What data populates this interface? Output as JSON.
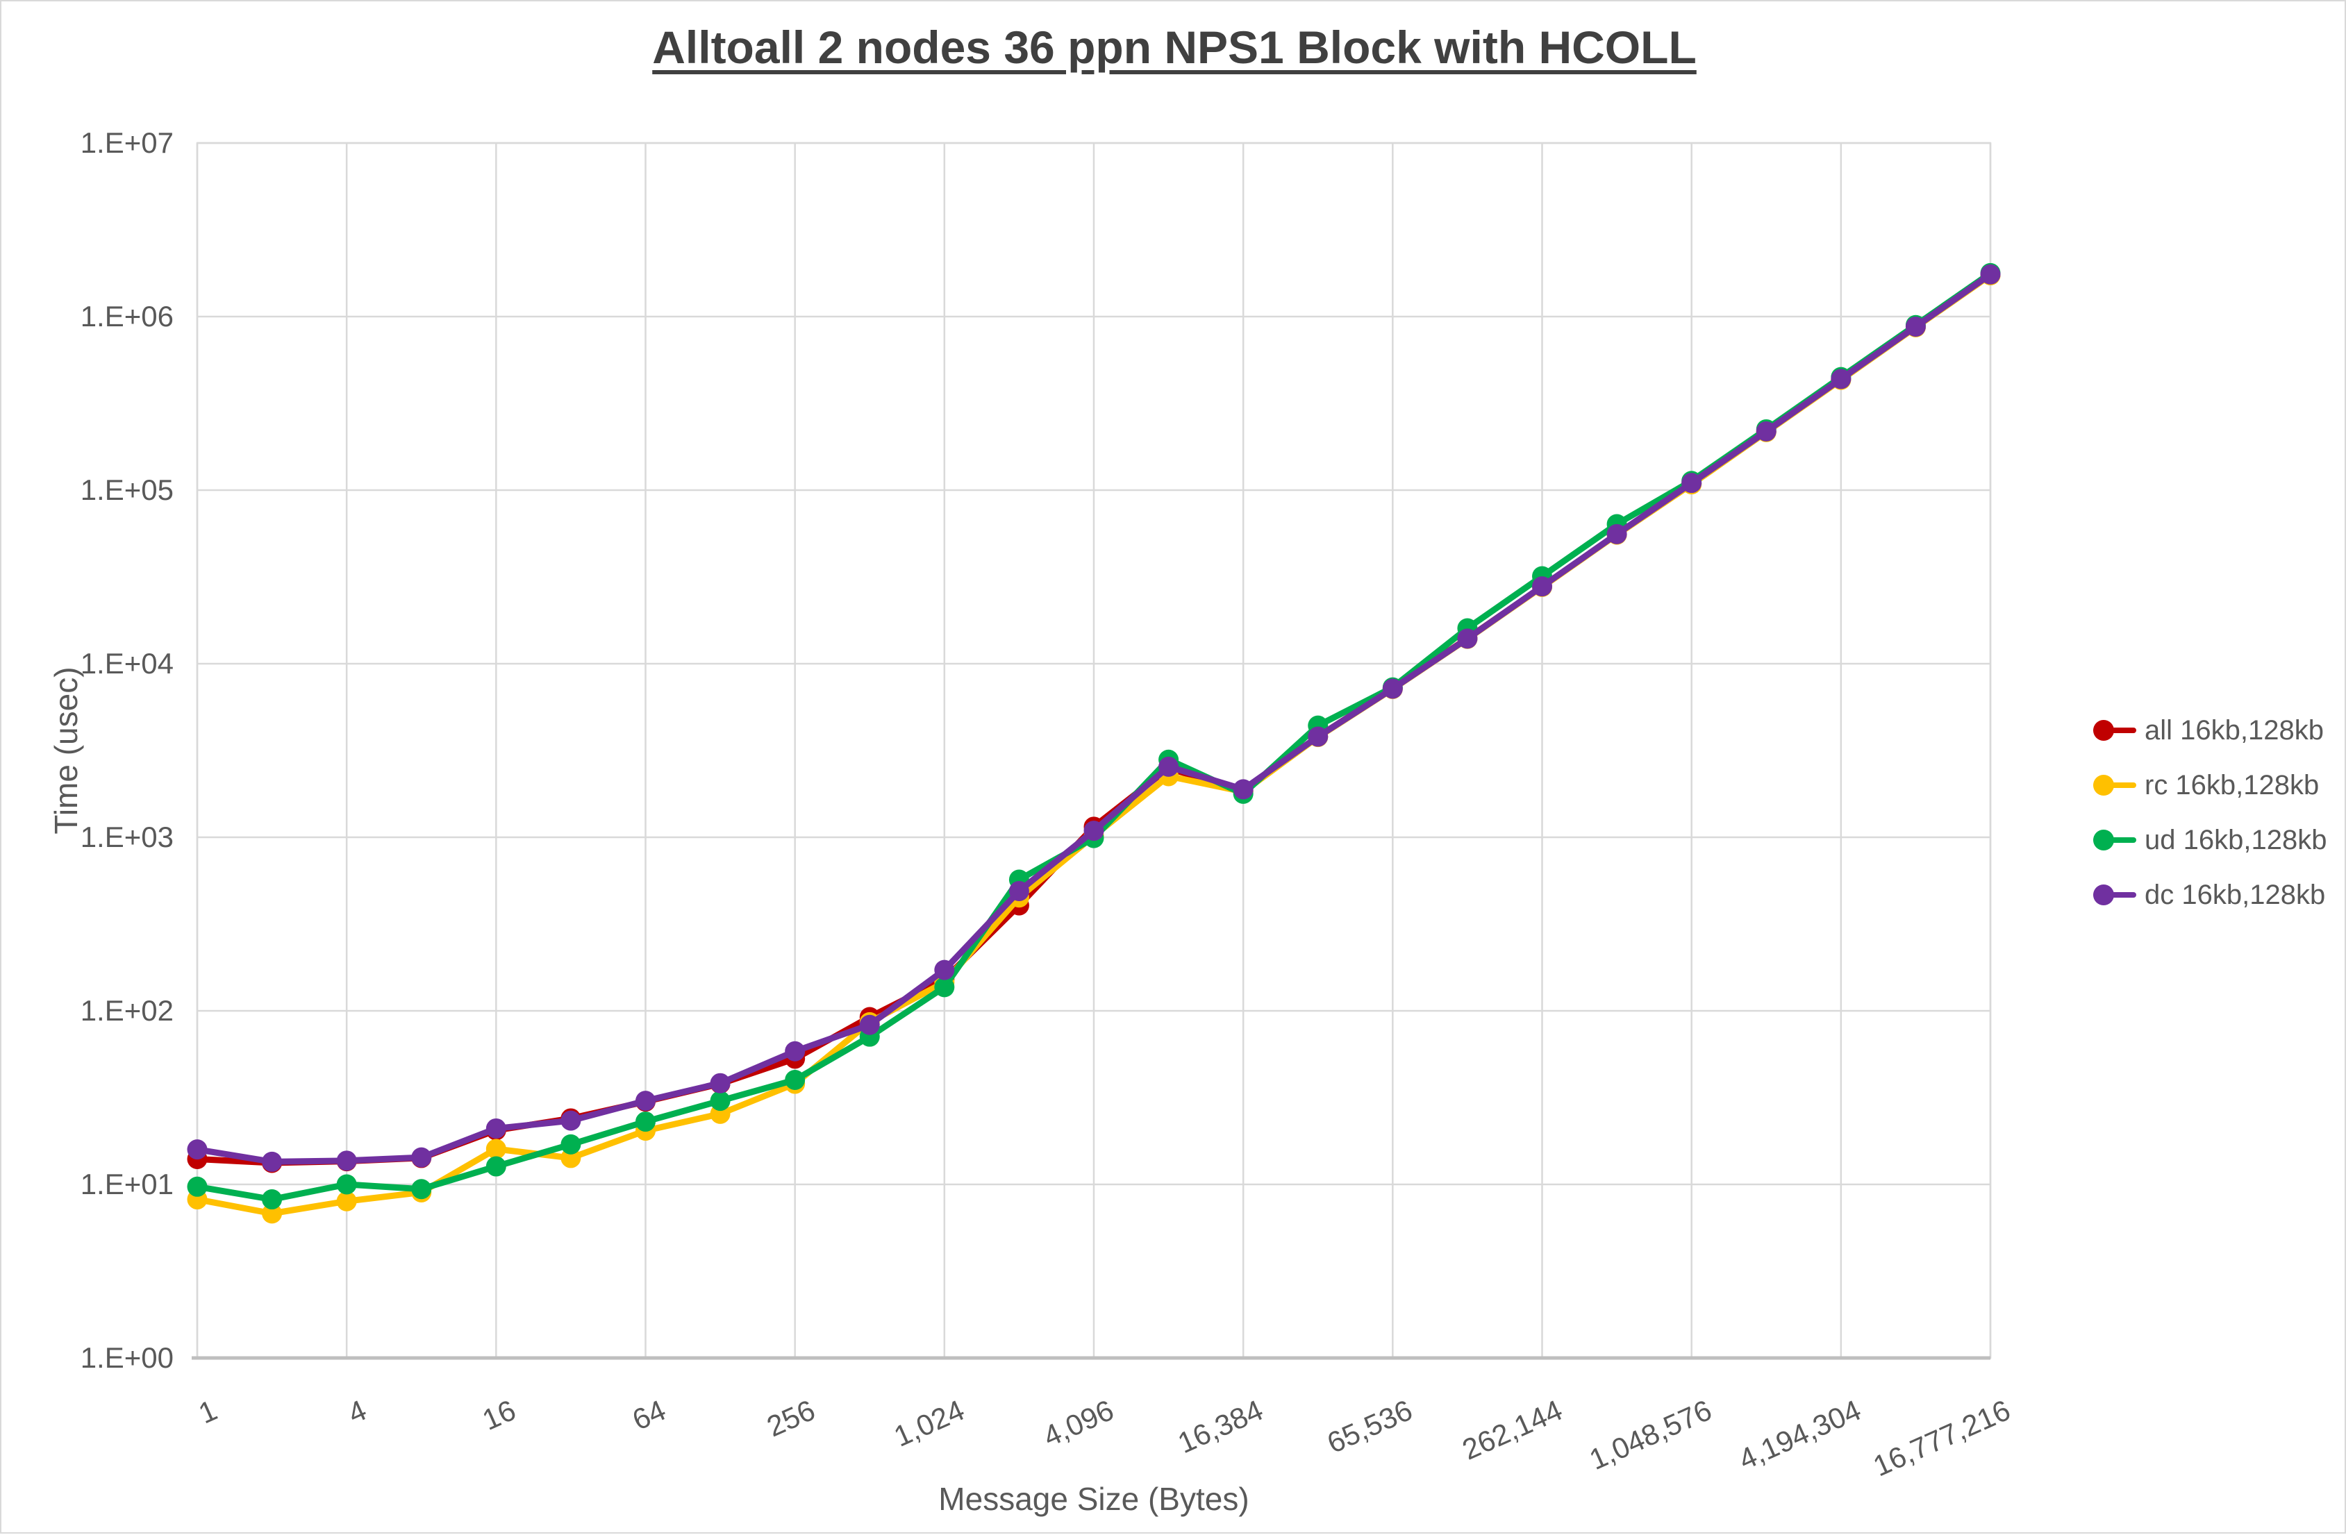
{
  "title": "Alltoall 2 nodes 36 ppn NPS1 Block with HCOLL",
  "axes": {
    "y_title": "Time (usec)",
    "x_title": "Message Size (Bytes)"
  },
  "colors": {
    "series_all": "#c00000",
    "series_rc": "#ffc000",
    "series_ud": "#00b050",
    "series_dc": "#7030a0",
    "gridline": "#d9d9d9",
    "axis_line": "#bfbfbf",
    "tick_text": "#595959",
    "title_text": "#404040"
  },
  "chart_data": {
    "type": "line",
    "title": "Alltoall 2 nodes 36 ppn NPS1 Block with HCOLL",
    "xlabel": "Message Size (Bytes)",
    "ylabel": "Time (usec)",
    "x_scale": "log2",
    "y_scale": "log10",
    "grid": true,
    "legend_position": "right",
    "xlim": [
      1,
      16777216
    ],
    "ylim": [
      1,
      10000000
    ],
    "y_ticks": [
      "1.E+00",
      "1.E+01",
      "1.E+02",
      "1.E+03",
      "1.E+04",
      "1.E+05",
      "1.E+06",
      "1.E+07"
    ],
    "y_tick_values": [
      1,
      10,
      100,
      1000,
      10000,
      100000,
      1000000,
      10000000
    ],
    "x_ticks": [
      "1",
      "4",
      "16",
      "64",
      "256",
      "1,024",
      "4,096",
      "16,384",
      "65,536",
      "262,144",
      "1,048,576",
      "4,194,304",
      "16,777,216"
    ],
    "x_tick_values": [
      1,
      4,
      16,
      64,
      256,
      1024,
      4096,
      16384,
      65536,
      262144,
      1048576,
      4194304,
      16777216
    ],
    "x": [
      1,
      2,
      4,
      8,
      16,
      32,
      64,
      128,
      256,
      512,
      1024,
      2048,
      4096,
      8192,
      16384,
      32768,
      65536,
      131072,
      262144,
      524288,
      1048576,
      2097152,
      4194304,
      8388608,
      16777216
    ],
    "series": [
      {
        "name": "all 16kb,128kb",
        "color": "#c00000",
        "values": [
          14,
          13.3,
          13.6,
          14.2,
          20.5,
          24,
          30,
          38,
          53,
          92,
          152,
          405,
          1150,
          2500,
          1850,
          3800,
          7200,
          14000,
          27800,
          55600,
          109000,
          217000,
          435000,
          872000,
          1740000
        ]
      },
      {
        "name": "rc 16kb,128kb",
        "color": "#ffc000",
        "values": [
          8.2,
          6.8,
          8,
          9,
          16,
          14.2,
          20.4,
          25.5,
          38,
          86,
          146,
          450,
          1020,
          2250,
          1830,
          3780,
          7150,
          13900,
          27700,
          55400,
          108000,
          216000,
          432000,
          868000,
          1730000
        ]
      },
      {
        "name": "ud 16kb,128kb",
        "color": "#00b050",
        "values": [
          9.7,
          8.2,
          10,
          9.4,
          12.7,
          17,
          23,
          30.3,
          40,
          71,
          137,
          570,
          990,
          2800,
          1780,
          4400,
          7300,
          16000,
          31900,
          63700,
          113000,
          224000,
          448000,
          893000,
          1780000
        ]
      },
      {
        "name": "dc 16kb,128kb",
        "color": "#7030a0",
        "values": [
          15.9,
          13.5,
          13.7,
          14.3,
          21,
          23.3,
          30.3,
          38.3,
          58.5,
          83,
          172,
          490,
          1090,
          2550,
          1890,
          3800,
          7180,
          13950,
          27900,
          55800,
          110000,
          218000,
          437000,
          875000,
          1750000
        ]
      }
    ]
  }
}
